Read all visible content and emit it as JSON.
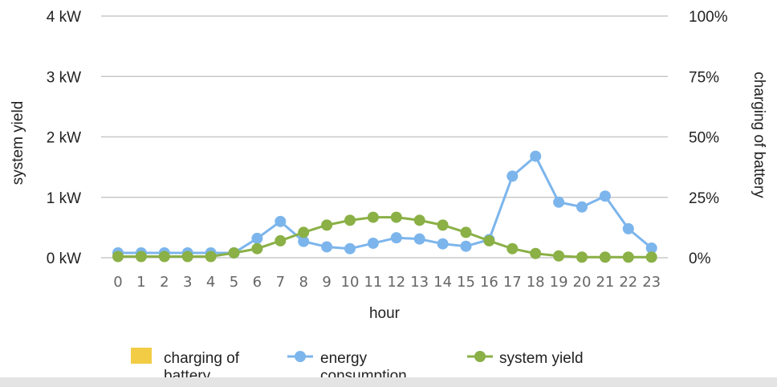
{
  "chart_data": {
    "type": "line",
    "xlabel": "hour",
    "ylabel_left": "system yield",
    "ylabel_right": "charging of battery",
    "left_ticks": [
      "0 kW",
      "1 kW",
      "2 kW",
      "3 kW",
      "4 kW"
    ],
    "right_ticks": [
      "0%",
      "25%",
      "50%",
      "75%",
      "100%"
    ],
    "ylim": [
      0,
      4
    ],
    "categories": [
      "0",
      "1",
      "2",
      "3",
      "4",
      "5",
      "6",
      "7",
      "8",
      "9",
      "10",
      "11",
      "12",
      "13",
      "14",
      "15",
      "16",
      "17",
      "18",
      "19",
      "20",
      "21",
      "22",
      "23"
    ],
    "series": [
      {
        "name": "charging of battery",
        "color": "#f2cc45",
        "values": [
          0,
          0,
          0,
          0,
          0,
          0,
          0,
          0,
          0,
          0,
          0,
          0,
          0,
          0,
          0,
          0,
          0,
          0,
          0,
          0,
          0,
          0,
          0,
          0
        ]
      },
      {
        "name": "energy consumption",
        "color": "#7cb5ec",
        "values": [
          0.08,
          0.08,
          0.08,
          0.08,
          0.08,
          0.08,
          0.32,
          0.6,
          0.27,
          0.18,
          0.15,
          0.24,
          0.33,
          0.31,
          0.23,
          0.19,
          0.3,
          1.35,
          1.68,
          0.92,
          0.84,
          1.02,
          0.48,
          0.16
        ]
      },
      {
        "name": "system yield",
        "color": "#8ab046",
        "values": [
          0.02,
          0.02,
          0.02,
          0.02,
          0.02,
          0.08,
          0.15,
          0.28,
          0.42,
          0.54,
          0.62,
          0.67,
          0.67,
          0.62,
          0.54,
          0.42,
          0.28,
          0.15,
          0.07,
          0.03,
          0.01,
          0.01,
          0.01,
          0.01
        ]
      }
    ],
    "legend": {
      "position": "bottom",
      "items": [
        {
          "label_line1": "charging of",
          "label_line2": "battery",
          "color": "#f2cc45",
          "marker": "square"
        },
        {
          "label_line1": "energy",
          "label_line2": "consumption",
          "color": "#7cb5ec",
          "marker": "line-dot"
        },
        {
          "label_line1": "system yield",
          "label_line2": "",
          "color": "#8ab046",
          "marker": "line-dot"
        }
      ]
    },
    "gridlines": true,
    "grid_color": "#c8c8c8"
  }
}
